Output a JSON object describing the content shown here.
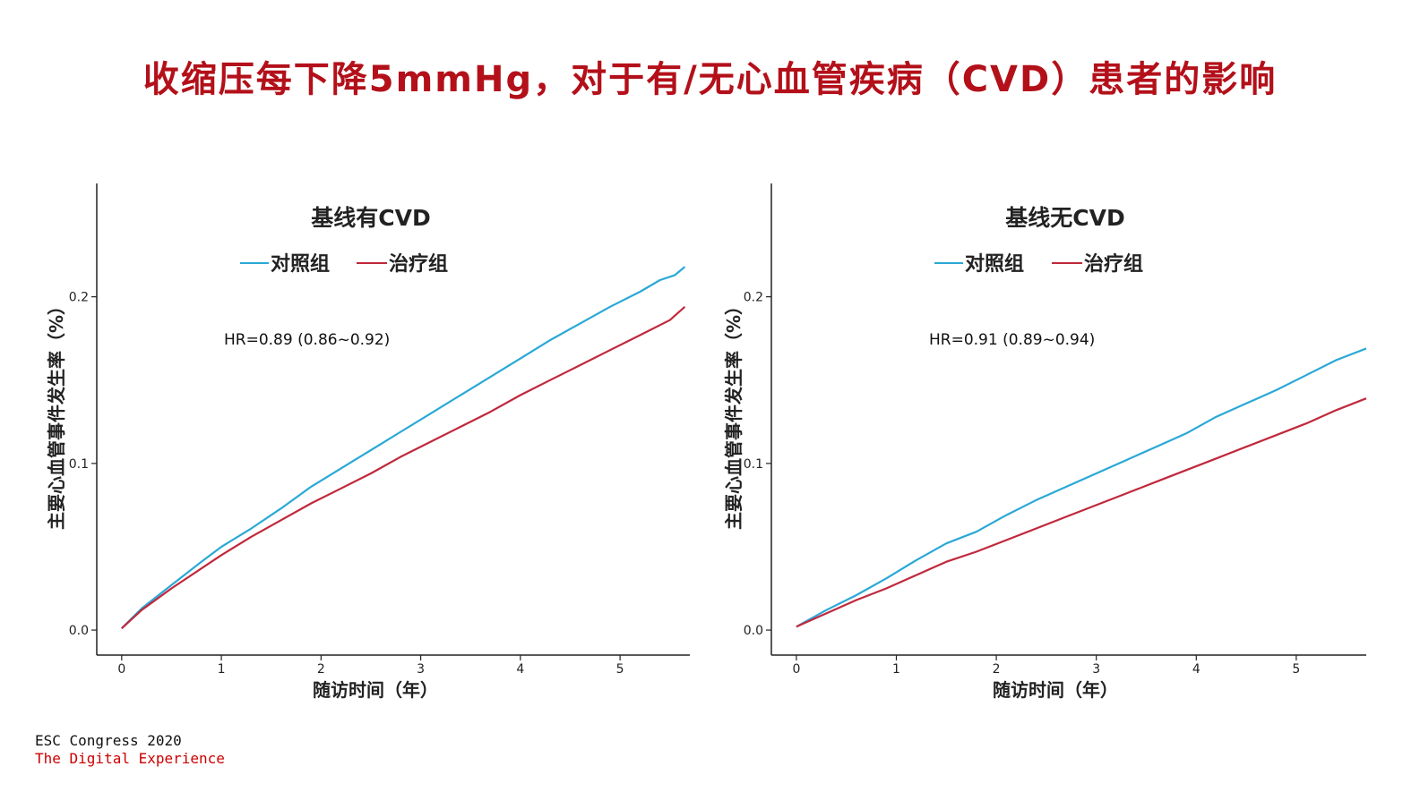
{
  "title": "收缩压每下降5mmHg，对于有/无心血管疾病（CVD）患者的影响",
  "footer": {
    "line1": "ESC Congress 2020",
    "line2": "The Digital Experience"
  },
  "colors": {
    "control": "#2aa8d6",
    "treatment": "#c0283c",
    "title": "#b3101a"
  },
  "chart_data": [
    {
      "type": "line",
      "title": "基线有CVD",
      "xlabel": "随访时间（年）",
      "ylabel": "主要心血管事件发生率（%）",
      "xticks": [
        "0",
        "1",
        "2",
        "3",
        "4",
        "5"
      ],
      "yticks": [
        "0.0",
        "0.1",
        "0.2"
      ],
      "xlim": [
        -0.25,
        5.7
      ],
      "ylim": [
        -0.015,
        0.268
      ],
      "legend": [
        "对照组",
        "治疗组"
      ],
      "annotation": "HR=0.89 (0.86~0.92)",
      "series": [
        {
          "name": "对照组",
          "color": "#2aa8d6",
          "x": [
            0.0,
            0.2,
            0.5,
            0.8,
            1.0,
            1.3,
            1.6,
            1.9,
            2.2,
            2.5,
            2.8,
            3.1,
            3.4,
            3.7,
            4.0,
            4.3,
            4.6,
            4.9,
            5.2,
            5.4,
            5.55,
            5.65
          ],
          "y": [
            0.001,
            0.013,
            0.027,
            0.041,
            0.05,
            0.061,
            0.073,
            0.086,
            0.097,
            0.108,
            0.119,
            0.13,
            0.141,
            0.152,
            0.163,
            0.174,
            0.184,
            0.194,
            0.203,
            0.21,
            0.213,
            0.218
          ]
        },
        {
          "name": "治疗组",
          "color": "#c0283c",
          "x": [
            0.0,
            0.2,
            0.5,
            0.8,
            1.0,
            1.3,
            1.6,
            1.9,
            2.2,
            2.5,
            2.8,
            3.1,
            3.4,
            3.7,
            4.0,
            4.3,
            4.6,
            4.9,
            5.2,
            5.5,
            5.65
          ],
          "y": [
            0.001,
            0.012,
            0.025,
            0.037,
            0.045,
            0.056,
            0.066,
            0.076,
            0.085,
            0.094,
            0.104,
            0.113,
            0.122,
            0.131,
            0.141,
            0.15,
            0.159,
            0.168,
            0.177,
            0.186,
            0.194
          ]
        }
      ]
    },
    {
      "type": "line",
      "title": "基线无CVD",
      "xlabel": "随访时间（年）",
      "ylabel": "主要心血管事件发生率（%）",
      "xticks": [
        "0",
        "1",
        "2",
        "3",
        "4",
        "5"
      ],
      "yticks": [
        "0.0",
        "0.1",
        "0.2"
      ],
      "xlim": [
        -0.25,
        5.7
      ],
      "ylim": [
        -0.015,
        0.268
      ],
      "legend": [
        "对照组",
        "治疗组"
      ],
      "annotation": "HR=0.91 (0.89~0.94)",
      "series": [
        {
          "name": "对照组",
          "color": "#2aa8d6",
          "x": [
            0.0,
            0.3,
            0.6,
            0.9,
            1.2,
            1.5,
            1.8,
            2.1,
            2.4,
            2.7,
            3.0,
            3.3,
            3.6,
            3.9,
            4.2,
            4.5,
            4.8,
            5.1,
            5.4,
            5.7
          ],
          "y": [
            0.002,
            0.012,
            0.021,
            0.031,
            0.042,
            0.052,
            0.059,
            0.069,
            0.078,
            0.086,
            0.094,
            0.102,
            0.11,
            0.118,
            0.128,
            0.136,
            0.144,
            0.153,
            0.162,
            0.169
          ]
        },
        {
          "name": "治疗组",
          "color": "#c0283c",
          "x": [
            0.0,
            0.3,
            0.6,
            0.9,
            1.2,
            1.5,
            1.8,
            2.1,
            2.4,
            2.7,
            3.0,
            3.3,
            3.6,
            3.9,
            4.2,
            4.5,
            4.8,
            5.1,
            5.4,
            5.7
          ],
          "y": [
            0.002,
            0.01,
            0.018,
            0.025,
            0.033,
            0.041,
            0.047,
            0.054,
            0.061,
            0.068,
            0.075,
            0.082,
            0.089,
            0.096,
            0.103,
            0.11,
            0.117,
            0.124,
            0.132,
            0.139
          ]
        }
      ]
    }
  ]
}
